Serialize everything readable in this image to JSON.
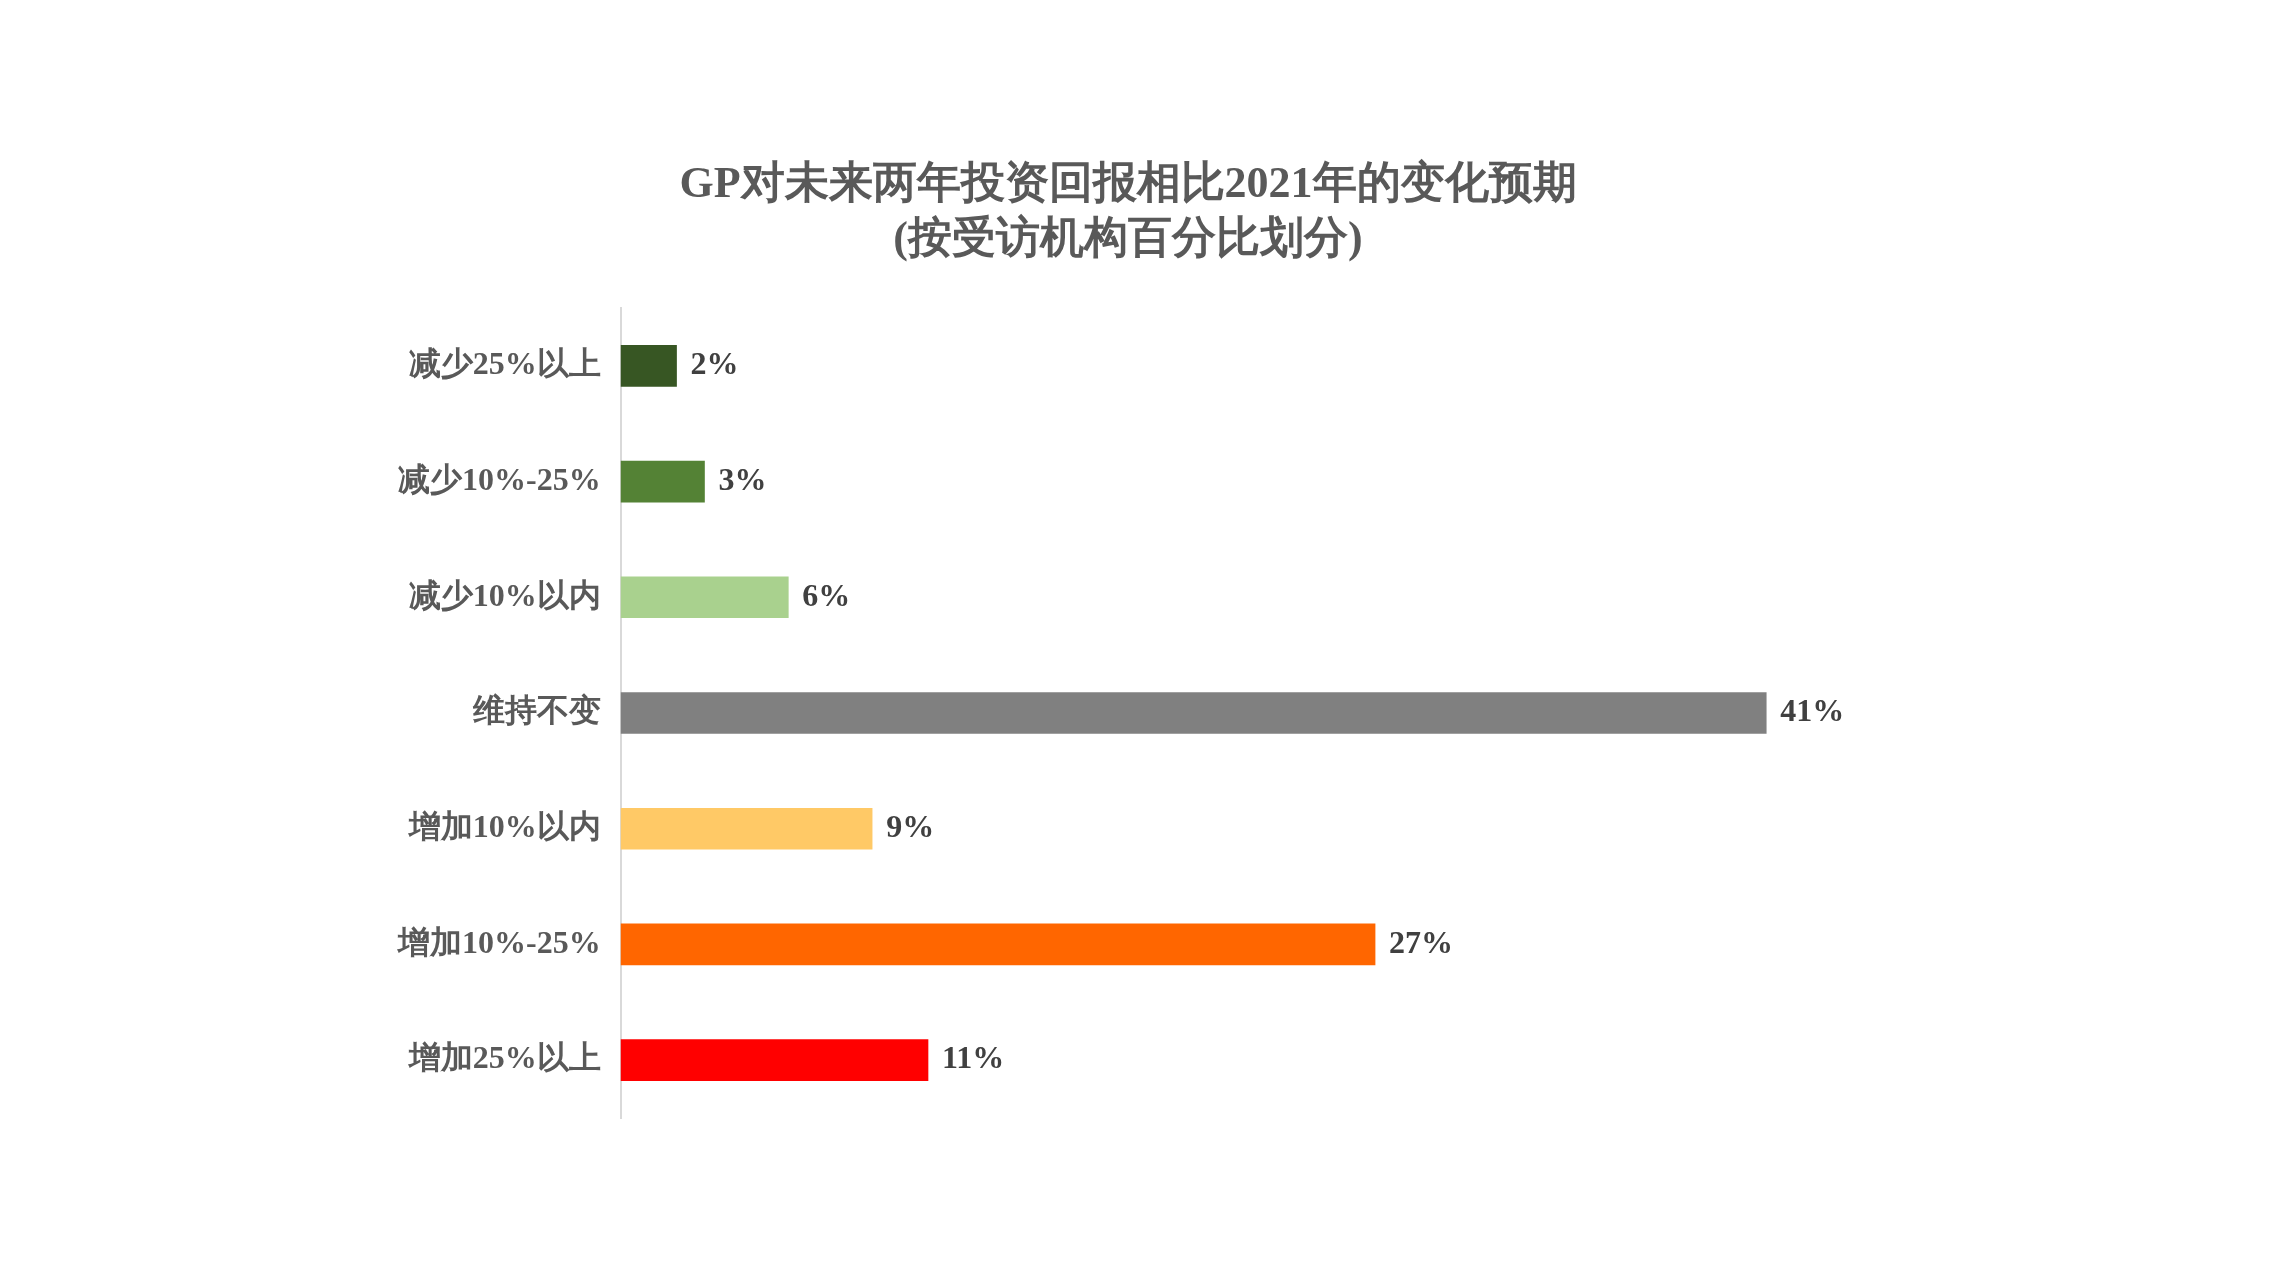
{
  "chart_data": {
    "type": "bar",
    "orientation": "horizontal",
    "title": "GP对未来两年投资回报相比2021年的变化预期\n(按受访机构百分比划分)",
    "categories": [
      "减少25%以上",
      "减少10%-25%",
      "减少10%以内",
      "维持不变",
      "增加10%以内",
      "增加10%-25%",
      "增加25%以上"
    ],
    "values": [
      2,
      3,
      6,
      41,
      9,
      27,
      11
    ],
    "value_labels": [
      "2%",
      "3%",
      "6%",
      "41%",
      "9%",
      "27%",
      "11%"
    ],
    "colors": [
      "#375623",
      "#548235",
      "#a9d18e",
      "#808080",
      "#ffc966",
      "#ff6600",
      "#ff0000"
    ],
    "grid": false,
    "legend": false,
    "tick_labels": "y"
  }
}
